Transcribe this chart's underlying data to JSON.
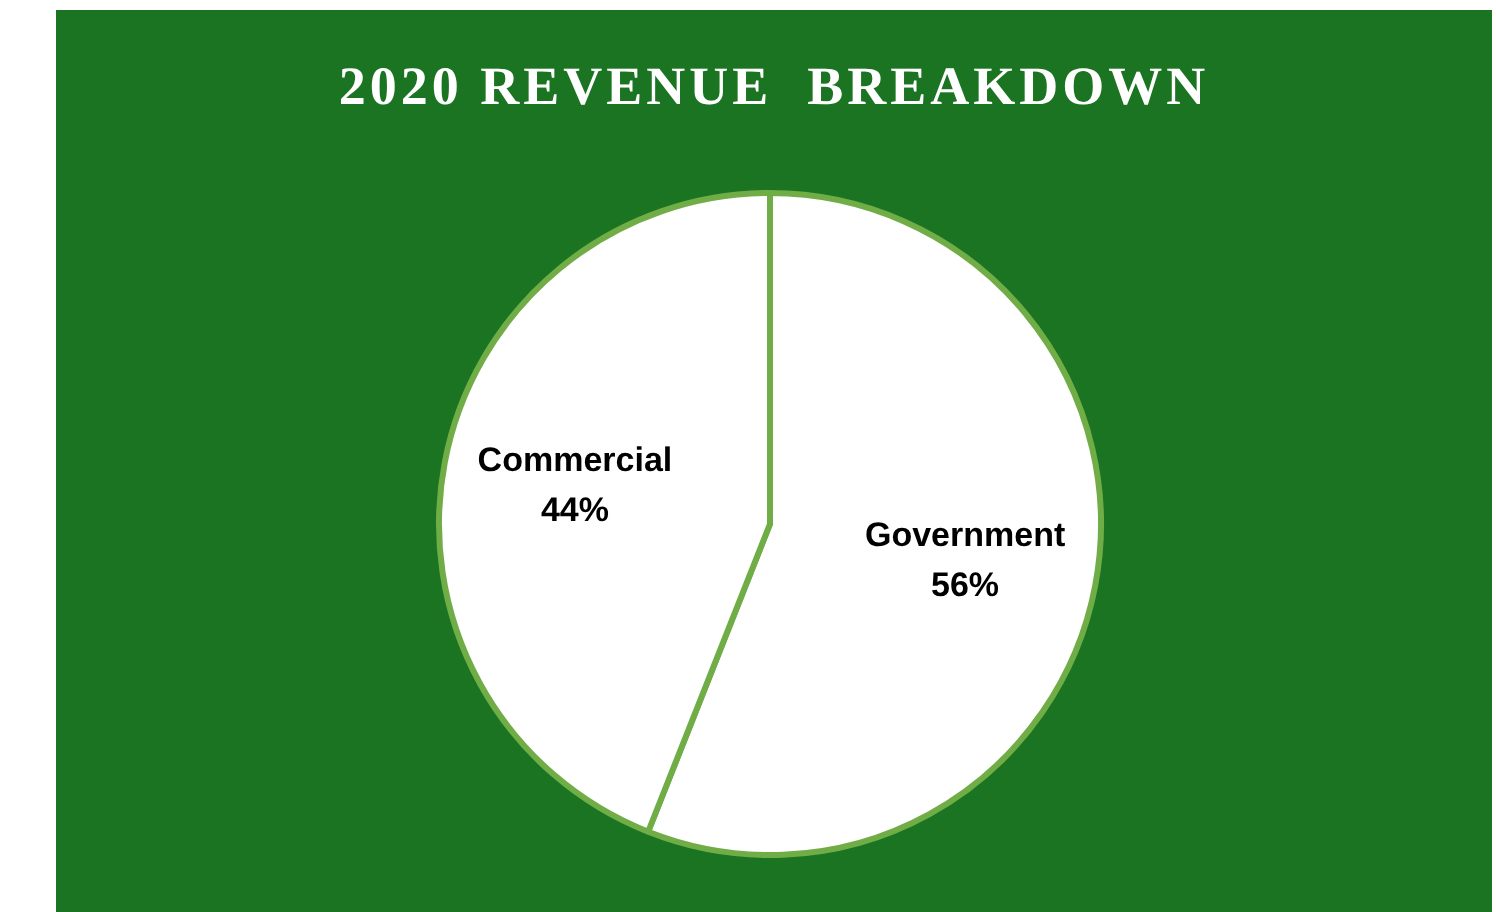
{
  "chart_data": {
    "type": "pie",
    "title": "2020 REVENUE  BREAKDOWN",
    "categories": [
      "Government",
      "Commercial"
    ],
    "values": [
      56,
      44
    ],
    "colors": [
      "#ffffff",
      "#ffffff"
    ],
    "value_labels": [
      "56%",
      "44%"
    ],
    "legend": false
  }
}
